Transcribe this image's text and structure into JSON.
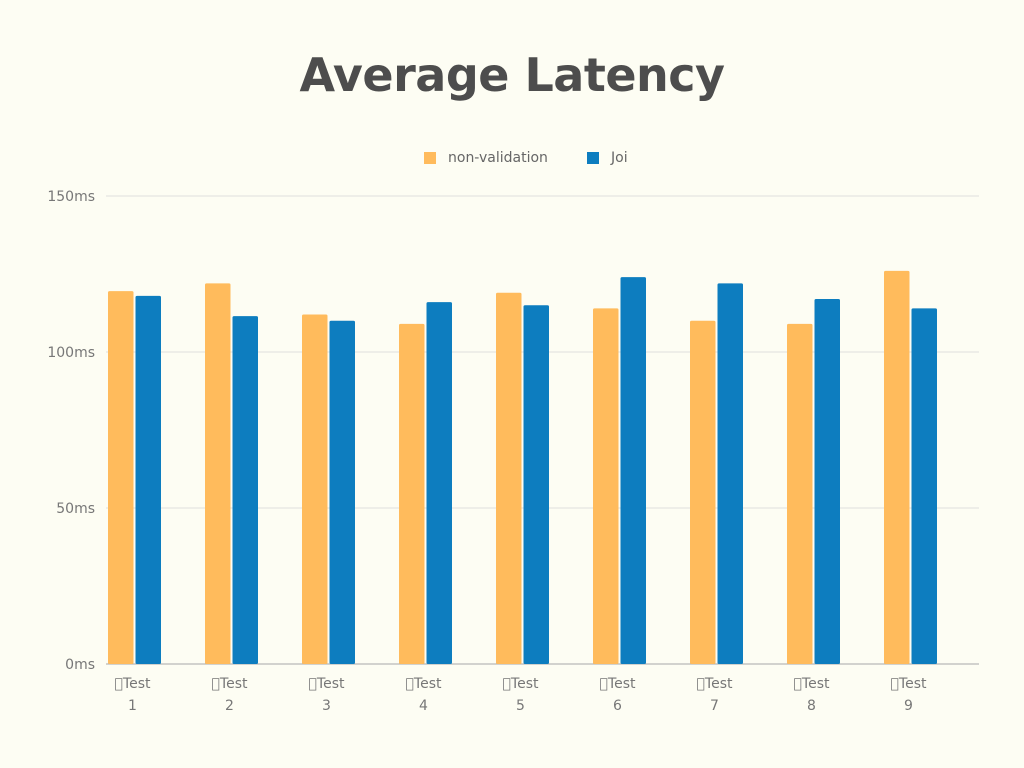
{
  "chart_data": {
    "type": "bar",
    "title": "Average Latency",
    "xlabel": "",
    "ylabel": "",
    "ylim": [
      0,
      150
    ],
    "yticks": [
      0,
      50,
      100,
      150
    ],
    "ytick_labels": [
      "0ms",
      "50ms",
      "100ms",
      "150ms"
    ],
    "grid": true,
    "legend_position": "top",
    "categories": [
      [
        "\u0000Test",
        "1"
      ],
      [
        "\u0000Test",
        "2"
      ],
      [
        "\u0000Test",
        "3"
      ],
      [
        "\u0000Test",
        "4"
      ],
      [
        "\u0000Test",
        "5"
      ],
      [
        "\u0000Test",
        "6"
      ],
      [
        "\u0000Test",
        "7"
      ],
      [
        "\u0000Test",
        "8"
      ],
      [
        "\u0000Test",
        "9"
      ]
    ],
    "series": [
      {
        "name": "non-validation",
        "color": "#ffbb5c",
        "values": [
          119.5,
          122,
          112,
          109,
          119,
          114,
          110,
          109,
          126
        ]
      },
      {
        "name": "Joi",
        "color": "#0d7dbf",
        "values": [
          118,
          111.5,
          110,
          116,
          115,
          124,
          122,
          117,
          114
        ]
      }
    ]
  }
}
